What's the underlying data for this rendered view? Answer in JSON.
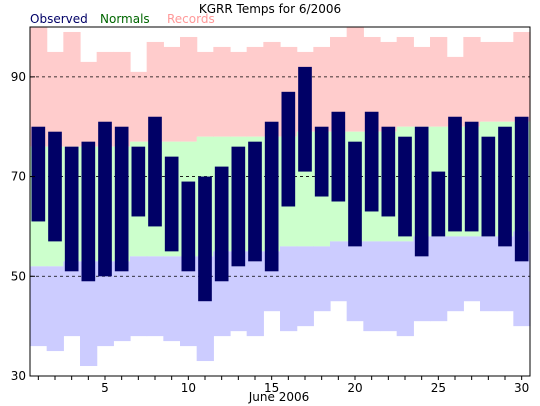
{
  "chart_data": {
    "type": "bar",
    "title": "KGRR Temps for 6/2006",
    "xlabel": "June 2006",
    "ylabel": "",
    "ylim": [
      30,
      100
    ],
    "xlim": [
      0.5,
      30.5
    ],
    "yticks": [
      30,
      50,
      70,
      90
    ],
    "xticks": [
      5,
      10,
      15,
      20,
      25,
      30
    ],
    "gridlines": [
      50,
      70,
      90
    ],
    "legend": {
      "placement": "top-left",
      "entries": [
        {
          "label": "Observed",
          "color": "#000066"
        },
        {
          "label": "Normals",
          "color": "#006600"
        },
        {
          "label": "Records",
          "color": "#ff9999"
        }
      ]
    },
    "colors": {
      "observed": "#000066",
      "normals": "#ccffcc",
      "records_high": "#ffcccc",
      "records_low": "#ccccff"
    },
    "days": [
      1,
      2,
      3,
      4,
      5,
      6,
      7,
      8,
      9,
      10,
      11,
      12,
      13,
      14,
      15,
      16,
      17,
      18,
      19,
      20,
      21,
      22,
      23,
      24,
      25,
      26,
      27,
      28,
      29,
      30
    ],
    "series": [
      {
        "name": "Observed",
        "high": [
          80,
          79,
          76,
          77,
          81,
          80,
          76,
          82,
          74,
          69,
          70,
          72,
          76,
          77,
          81,
          87,
          92,
          80,
          83,
          77,
          83,
          80,
          78,
          80,
          71,
          82,
          81,
          78,
          80,
          82
        ],
        "low": [
          61,
          57,
          51,
          49,
          50,
          51,
          62,
          60,
          55,
          51,
          45,
          49,
          52,
          53,
          51,
          64,
          71,
          66,
          65,
          56,
          63,
          62,
          58,
          54,
          58,
          59,
          59,
          58,
          56,
          53
        ]
      },
      {
        "name": "Normals",
        "high": [
          76,
          76,
          76,
          76,
          76,
          76,
          77,
          77,
          77,
          77,
          78,
          78,
          78,
          78,
          78,
          78,
          79,
          79,
          79,
          79,
          79,
          79,
          80,
          80,
          80,
          80,
          80,
          81,
          81,
          81
        ],
        "low": [
          52,
          52,
          53,
          53,
          53,
          53,
          54,
          54,
          54,
          54,
          54,
          55,
          55,
          55,
          55,
          56,
          56,
          56,
          57,
          57,
          57,
          57,
          57,
          58,
          58,
          58,
          58,
          58,
          58,
          59
        ]
      },
      {
        "name": "Records",
        "high": [
          102,
          95,
          99,
          93,
          95,
          95,
          91,
          97,
          96,
          98,
          95,
          96,
          95,
          96,
          97,
          96,
          95,
          96,
          98,
          102,
          98,
          97,
          98,
          96,
          98,
          94,
          98,
          97,
          97,
          99
        ],
        "low": [
          36,
          35,
          38,
          32,
          36,
          37,
          38,
          38,
          37,
          36,
          33,
          38,
          39,
          38,
          43,
          39,
          40,
          43,
          45,
          41,
          39,
          39,
          38,
          41,
          41,
          43,
          45,
          43,
          43,
          40
        ]
      }
    ]
  }
}
